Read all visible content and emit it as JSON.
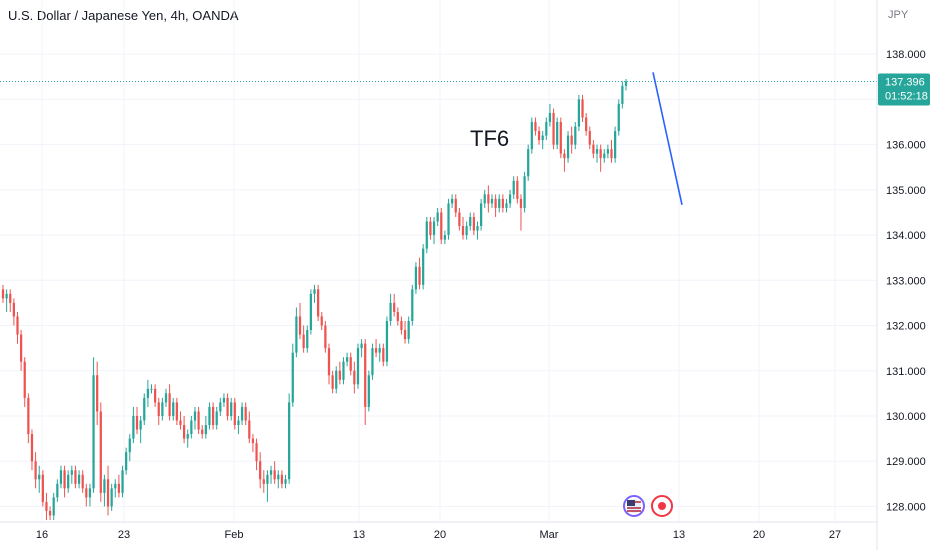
{
  "chart_data": {
    "type": "candlestick",
    "title": "U.S. Dollar / Japanese Yen, 4h, OANDA",
    "currency_label": "JPY",
    "annotation": "TF6",
    "last_price": "137.396",
    "countdown": "01:52:18",
    "ylim": [
      127.7,
      138.8
    ],
    "y_ticks": [
      "128.000",
      "129.000",
      "130.000",
      "131.000",
      "132.000",
      "133.000",
      "134.000",
      "135.000",
      "136.000",
      "137.000",
      "138.000"
    ],
    "x_ticks": [
      "16",
      "23",
      "Feb",
      "13",
      "20",
      "Mar",
      "13",
      "20",
      "27"
    ],
    "grid": true,
    "colors": {
      "up": "#26a69a",
      "down": "#ef5350",
      "line": "#2962ff",
      "price_tag": "#26a69a",
      "event_us": "#7b61ff",
      "event_jp": "#f23645"
    },
    "events": [
      {
        "icon": "us-flag-icon"
      },
      {
        "icon": "jp-flag-icon"
      }
    ],
    "candles": [
      [
        132.8,
        132.9,
        132.5,
        132.6
      ],
      [
        132.6,
        132.8,
        132.3,
        132.7
      ],
      [
        132.7,
        132.8,
        132.3,
        132.5
      ],
      [
        132.5,
        132.6,
        132.0,
        132.2
      ],
      [
        132.2,
        132.3,
        131.6,
        131.8
      ],
      [
        131.8,
        131.9,
        131.0,
        131.2
      ],
      [
        131.2,
        131.3,
        130.2,
        130.4
      ],
      [
        130.4,
        130.5,
        129.4,
        129.6
      ],
      [
        129.6,
        129.7,
        128.8,
        129.0
      ],
      [
        129.0,
        129.2,
        128.4,
        128.6
      ],
      [
        128.6,
        128.9,
        128.3,
        128.7
      ],
      [
        128.7,
        128.8,
        128.0,
        128.1
      ],
      [
        128.1,
        128.3,
        127.7,
        127.9
      ],
      [
        127.9,
        128.0,
        127.7,
        127.8
      ],
      [
        127.8,
        128.3,
        127.7,
        128.2
      ],
      [
        128.2,
        128.6,
        128.1,
        128.5
      ],
      [
        128.5,
        128.9,
        128.4,
        128.8
      ],
      [
        128.8,
        128.9,
        128.2,
        128.4
      ],
      [
        128.4,
        128.8,
        128.3,
        128.7
      ],
      [
        128.7,
        128.9,
        128.5,
        128.8
      ],
      [
        128.8,
        128.9,
        128.4,
        128.5
      ],
      [
        128.5,
        128.8,
        128.4,
        128.7
      ],
      [
        128.7,
        128.8,
        128.3,
        128.4
      ],
      [
        128.4,
        128.5,
        128.0,
        128.2
      ],
      [
        128.2,
        128.5,
        128.0,
        128.4
      ],
      [
        128.4,
        131.3,
        128.3,
        130.9
      ],
      [
        130.9,
        131.2,
        129.8,
        130.1
      ],
      [
        130.1,
        130.3,
        128.1,
        128.3
      ],
      [
        128.3,
        128.7,
        128.0,
        128.6
      ],
      [
        128.6,
        128.9,
        127.8,
        128.0
      ],
      [
        128.0,
        128.5,
        127.9,
        128.4
      ],
      [
        128.4,
        128.6,
        128.2,
        128.5
      ],
      [
        128.5,
        128.7,
        128.2,
        128.3
      ],
      [
        128.3,
        128.9,
        128.2,
        128.8
      ],
      [
        128.8,
        129.3,
        128.7,
        129.2
      ],
      [
        129.2,
        129.6,
        129.0,
        129.5
      ],
      [
        129.5,
        130.2,
        129.4,
        130.0
      ],
      [
        130.0,
        130.2,
        129.6,
        129.7
      ],
      [
        129.7,
        130.0,
        129.4,
        129.9
      ],
      [
        129.9,
        130.5,
        129.8,
        130.4
      ],
      [
        130.4,
        130.8,
        130.2,
        130.6
      ],
      [
        130.6,
        130.7,
        130.5,
        130.6
      ],
      [
        130.6,
        130.7,
        130.2,
        130.3
      ],
      [
        130.3,
        130.4,
        129.8,
        130.0
      ],
      [
        130.0,
        130.4,
        129.9,
        130.3
      ],
      [
        130.3,
        130.6,
        130.2,
        130.5
      ],
      [
        130.5,
        130.7,
        129.9,
        130.0
      ],
      [
        130.0,
        130.4,
        129.9,
        130.3
      ],
      [
        130.3,
        130.4,
        129.8,
        129.9
      ],
      [
        129.9,
        130.1,
        129.7,
        129.8
      ],
      [
        129.8,
        130.0,
        129.4,
        129.5
      ],
      [
        129.5,
        129.7,
        129.3,
        129.6
      ],
      [
        129.6,
        130.0,
        129.5,
        129.9
      ],
      [
        129.9,
        130.2,
        129.7,
        130.1
      ],
      [
        130.1,
        130.2,
        129.6,
        129.7
      ],
      [
        129.7,
        129.8,
        129.5,
        129.6
      ],
      [
        129.6,
        130.0,
        129.5,
        129.8
      ],
      [
        129.8,
        130.3,
        129.7,
        130.2
      ],
      [
        130.2,
        130.3,
        129.7,
        129.8
      ],
      [
        129.8,
        130.2,
        129.7,
        130.1
      ],
      [
        130.1,
        130.4,
        130.0,
        130.3
      ],
      [
        130.3,
        130.5,
        130.2,
        130.4
      ],
      [
        130.4,
        130.5,
        129.9,
        130.0
      ],
      [
        130.0,
        130.4,
        129.9,
        130.3
      ],
      [
        130.3,
        130.4,
        129.7,
        129.8
      ],
      [
        129.8,
        130.0,
        129.6,
        129.9
      ],
      [
        129.9,
        130.3,
        129.8,
        130.2
      ],
      [
        130.2,
        130.3,
        129.8,
        129.9
      ],
      [
        129.9,
        130.1,
        129.4,
        129.5
      ],
      [
        129.5,
        129.6,
        129.2,
        129.4
      ],
      [
        129.4,
        129.5,
        128.8,
        129.0
      ],
      [
        129.0,
        129.2,
        128.4,
        128.6
      ],
      [
        128.6,
        128.8,
        128.3,
        128.5
      ],
      [
        128.5,
        128.8,
        128.1,
        128.7
      ],
      [
        128.7,
        128.9,
        128.5,
        128.8
      ],
      [
        128.8,
        129.0,
        128.5,
        128.6
      ],
      [
        128.6,
        128.8,
        128.4,
        128.7
      ],
      [
        128.7,
        128.8,
        128.4,
        128.5
      ],
      [
        128.5,
        128.7,
        128.4,
        128.6
      ],
      [
        128.6,
        130.5,
        128.5,
        130.3
      ],
      [
        130.3,
        131.6,
        130.2,
        131.4
      ],
      [
        131.4,
        132.4,
        131.3,
        132.2
      ],
      [
        132.2,
        132.5,
        131.7,
        131.8
      ],
      [
        131.8,
        132.0,
        131.4,
        131.5
      ],
      [
        131.5,
        132.0,
        131.4,
        131.9
      ],
      [
        131.9,
        132.8,
        131.8,
        132.7
      ],
      [
        132.7,
        132.9,
        132.5,
        132.8
      ],
      [
        132.8,
        132.9,
        132.1,
        132.2
      ],
      [
        132.2,
        132.3,
        131.9,
        132.0
      ],
      [
        132.0,
        132.1,
        131.4,
        131.5
      ],
      [
        131.5,
        131.6,
        130.7,
        130.9
      ],
      [
        130.9,
        131.0,
        130.5,
        130.6
      ],
      [
        130.6,
        131.1,
        130.5,
        131.0
      ],
      [
        131.0,
        131.2,
        130.7,
        130.8
      ],
      [
        130.8,
        131.3,
        130.7,
        131.2
      ],
      [
        131.2,
        131.4,
        131.1,
        131.3
      ],
      [
        131.3,
        131.4,
        130.9,
        131.0
      ],
      [
        131.0,
        131.2,
        130.5,
        130.7
      ],
      [
        130.7,
        131.6,
        130.6,
        131.5
      ],
      [
        131.5,
        131.7,
        131.3,
        131.6
      ],
      [
        131.6,
        131.7,
        129.8,
        130.2
      ],
      [
        130.2,
        131.0,
        130.1,
        130.9
      ],
      [
        130.9,
        131.6,
        130.8,
        131.5
      ],
      [
        131.5,
        131.7,
        131.3,
        131.4
      ],
      [
        131.4,
        131.6,
        131.2,
        131.5
      ],
      [
        131.5,
        131.6,
        131.1,
        131.2
      ],
      [
        131.2,
        132.2,
        131.1,
        132.1
      ],
      [
        132.1,
        132.7,
        132.0,
        132.5
      ],
      [
        132.5,
        132.7,
        132.2,
        132.3
      ],
      [
        132.3,
        132.4,
        132.0,
        132.1
      ],
      [
        132.1,
        132.2,
        131.8,
        131.9
      ],
      [
        131.9,
        132.1,
        131.6,
        131.7
      ],
      [
        131.7,
        132.2,
        131.6,
        132.1
      ],
      [
        132.1,
        132.9,
        132.0,
        132.8
      ],
      [
        132.8,
        133.4,
        132.7,
        133.3
      ],
      [
        133.3,
        133.5,
        132.8,
        132.9
      ],
      [
        132.9,
        133.8,
        132.8,
        133.7
      ],
      [
        133.7,
        134.4,
        133.6,
        134.3
      ],
      [
        134.3,
        134.4,
        133.9,
        134.0
      ],
      [
        134.0,
        134.4,
        133.8,
        134.3
      ],
      [
        134.3,
        134.6,
        134.2,
        134.5
      ],
      [
        134.5,
        134.6,
        133.8,
        133.9
      ],
      [
        133.9,
        134.1,
        133.8,
        134.0
      ],
      [
        134.0,
        134.8,
        133.9,
        134.7
      ],
      [
        134.7,
        134.9,
        134.6,
        134.8
      ],
      [
        134.8,
        134.9,
        134.4,
        134.5
      ],
      [
        134.5,
        134.6,
        134.1,
        134.2
      ],
      [
        134.2,
        134.4,
        133.9,
        134.0
      ],
      [
        134.0,
        134.3,
        133.9,
        134.2
      ],
      [
        134.2,
        134.5,
        134.1,
        134.4
      ],
      [
        134.4,
        134.5,
        134.0,
        134.1
      ],
      [
        134.1,
        134.3,
        133.9,
        134.2
      ],
      [
        134.2,
        134.8,
        134.1,
        134.7
      ],
      [
        134.7,
        135.0,
        134.6,
        134.9
      ],
      [
        134.9,
        135.1,
        134.5,
        134.7
      ],
      [
        134.7,
        134.9,
        134.6,
        134.8
      ],
      [
        134.8,
        134.9,
        134.4,
        134.6
      ],
      [
        134.6,
        134.9,
        134.5,
        134.8
      ],
      [
        134.8,
        134.9,
        134.5,
        134.6
      ],
      [
        134.6,
        134.8,
        134.5,
        134.7
      ],
      [
        134.7,
        135.0,
        134.6,
        134.9
      ],
      [
        134.9,
        135.3,
        134.8,
        135.2
      ],
      [
        135.2,
        135.3,
        134.7,
        134.8
      ],
      [
        134.8,
        134.9,
        134.1,
        134.6
      ],
      [
        134.6,
        135.4,
        134.5,
        135.3
      ],
      [
        135.3,
        136.0,
        135.2,
        135.9
      ],
      [
        135.9,
        136.6,
        135.8,
        136.5
      ],
      [
        136.5,
        136.6,
        136.2,
        136.3
      ],
      [
        136.3,
        136.4,
        136.0,
        136.1
      ],
      [
        136.1,
        136.3,
        135.9,
        136.2
      ],
      [
        136.2,
        136.6,
        136.1,
        136.5
      ],
      [
        136.5,
        136.9,
        136.4,
        136.7
      ],
      [
        136.7,
        136.8,
        135.9,
        136.0
      ],
      [
        136.0,
        136.6,
        135.9,
        136.5
      ],
      [
        136.5,
        136.6,
        135.7,
        135.8
      ],
      [
        135.8,
        135.9,
        135.4,
        135.7
      ],
      [
        135.7,
        136.3,
        135.6,
        136.2
      ],
      [
        136.2,
        136.4,
        135.8,
        136.0
      ],
      [
        136.0,
        136.5,
        135.9,
        136.4
      ],
      [
        136.4,
        137.1,
        136.3,
        137.0
      ],
      [
        137.0,
        137.1,
        136.5,
        136.6
      ],
      [
        136.6,
        136.7,
        136.2,
        136.3
      ],
      [
        136.3,
        136.4,
        135.9,
        136.0
      ],
      [
        136.0,
        136.1,
        135.7,
        135.8
      ],
      [
        135.8,
        136.0,
        135.6,
        135.9
      ],
      [
        135.9,
        136.0,
        135.4,
        135.7
      ],
      [
        135.7,
        135.9,
        135.6,
        135.8
      ],
      [
        135.8,
        136.0,
        135.7,
        135.9
      ],
      [
        135.9,
        136.1,
        135.6,
        135.7
      ],
      [
        135.7,
        136.4,
        135.6,
        136.3
      ],
      [
        136.3,
        137.0,
        136.2,
        136.9
      ],
      [
        136.9,
        137.4,
        136.8,
        137.3
      ],
      [
        137.3,
        137.45,
        137.2,
        137.396
      ]
    ]
  }
}
